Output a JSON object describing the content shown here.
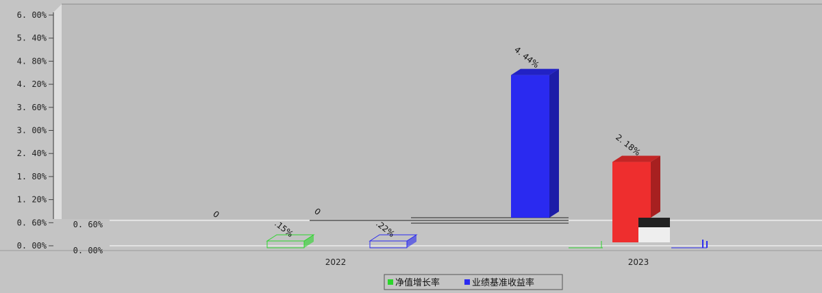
{
  "chart_data": {
    "type": "bar",
    "title": "",
    "xlabel": "",
    "ylabel": "",
    "categories": [
      "2022",
      "2023"
    ],
    "series": [
      {
        "name": "净值增长率",
        "values": [
          0,
          0
        ],
        "color": "#2bd52b"
      },
      {
        "name": "业绩基准收益率",
        "values": [
          0,
          4.44
        ],
        "color": "#2a2af0"
      },
      {
        "name": "",
        "values": [
          null,
          2.18
        ],
        "color": "#ee2e2e"
      }
    ],
    "ylim": [
      0,
      6
    ],
    "ytick_labels": [
      "0.00%",
      "0.60%",
      "1.20%",
      "1.80%",
      "2.40%",
      "3.00%",
      "3.60%",
      "4.20%",
      "4.80%",
      "5.40%",
      "6.00%"
    ],
    "data_labels": {
      "zero_markers": [
        "0",
        "0"
      ],
      "partial": [
        ".15%",
        ".22%"
      ],
      "bars": [
        "4.44%",
        "2.18%"
      ]
    },
    "grid": true,
    "legend_position": "bottom"
  }
}
